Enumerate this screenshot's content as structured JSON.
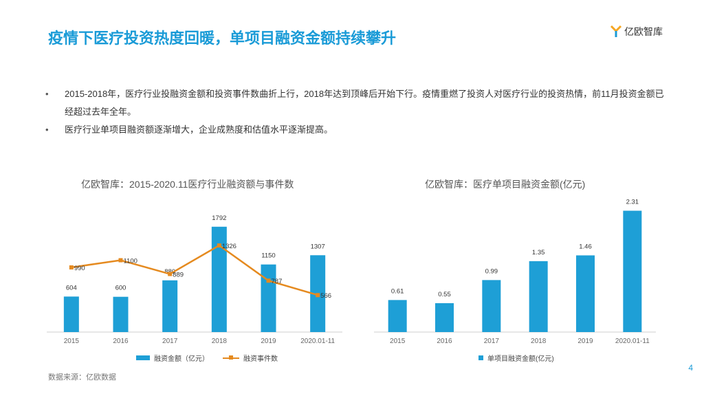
{
  "title": "疫情下医疗投资热度回暖，单项目融资金额持续攀升",
  "logo": {
    "text": "亿欧智库",
    "icon": "yiou-logo-icon"
  },
  "bullets": [
    "2015-2018年，医疗行业投融资金额和投资事件数曲折上行，2018年达到顶峰后开始下行。疫情重燃了投资人对医疗行业的投资热情，前11月投资金额已经超过去年全年。",
    "医疗行业单项目融资额逐渐增大，企业成熟度和估值水平逐渐提高。"
  ],
  "colors": {
    "accent": "#1a9bd7",
    "bar": "#1e9fd6",
    "line": "#e58a1f"
  },
  "chart_data": [
    {
      "type": "bar",
      "title": "亿欧智库：2015-2020.11医疗行业融资额与事件数",
      "categories": [
        "2015",
        "2016",
        "2017",
        "2018",
        "2019",
        "2020.01-11"
      ],
      "series": [
        {
          "name": "融资金额（亿元）",
          "type": "bar",
          "values": [
            604,
            600,
            880,
            1792,
            1150,
            1307
          ]
        },
        {
          "name": "融资事件数",
          "type": "line",
          "values": [
            990,
            1100,
            889,
            1326,
            787,
            566
          ]
        }
      ],
      "ylim": [
        0,
        2000
      ],
      "grid": false,
      "legend": "bottom"
    },
    {
      "type": "bar",
      "title": "亿欧智库：医疗单项目融资金额(亿元)",
      "categories": [
        "2015",
        "2016",
        "2017",
        "2018",
        "2019",
        "2020.01-11"
      ],
      "series": [
        {
          "name": "单项目融资金额(亿元)",
          "values": [
            0.61,
            0.55,
            0.99,
            1.35,
            1.46,
            2.31
          ]
        }
      ],
      "ylim": [
        0,
        2.5
      ],
      "grid": false,
      "legend": "bottom"
    }
  ],
  "source": "数据来源：亿欧数据",
  "page_number": "4"
}
